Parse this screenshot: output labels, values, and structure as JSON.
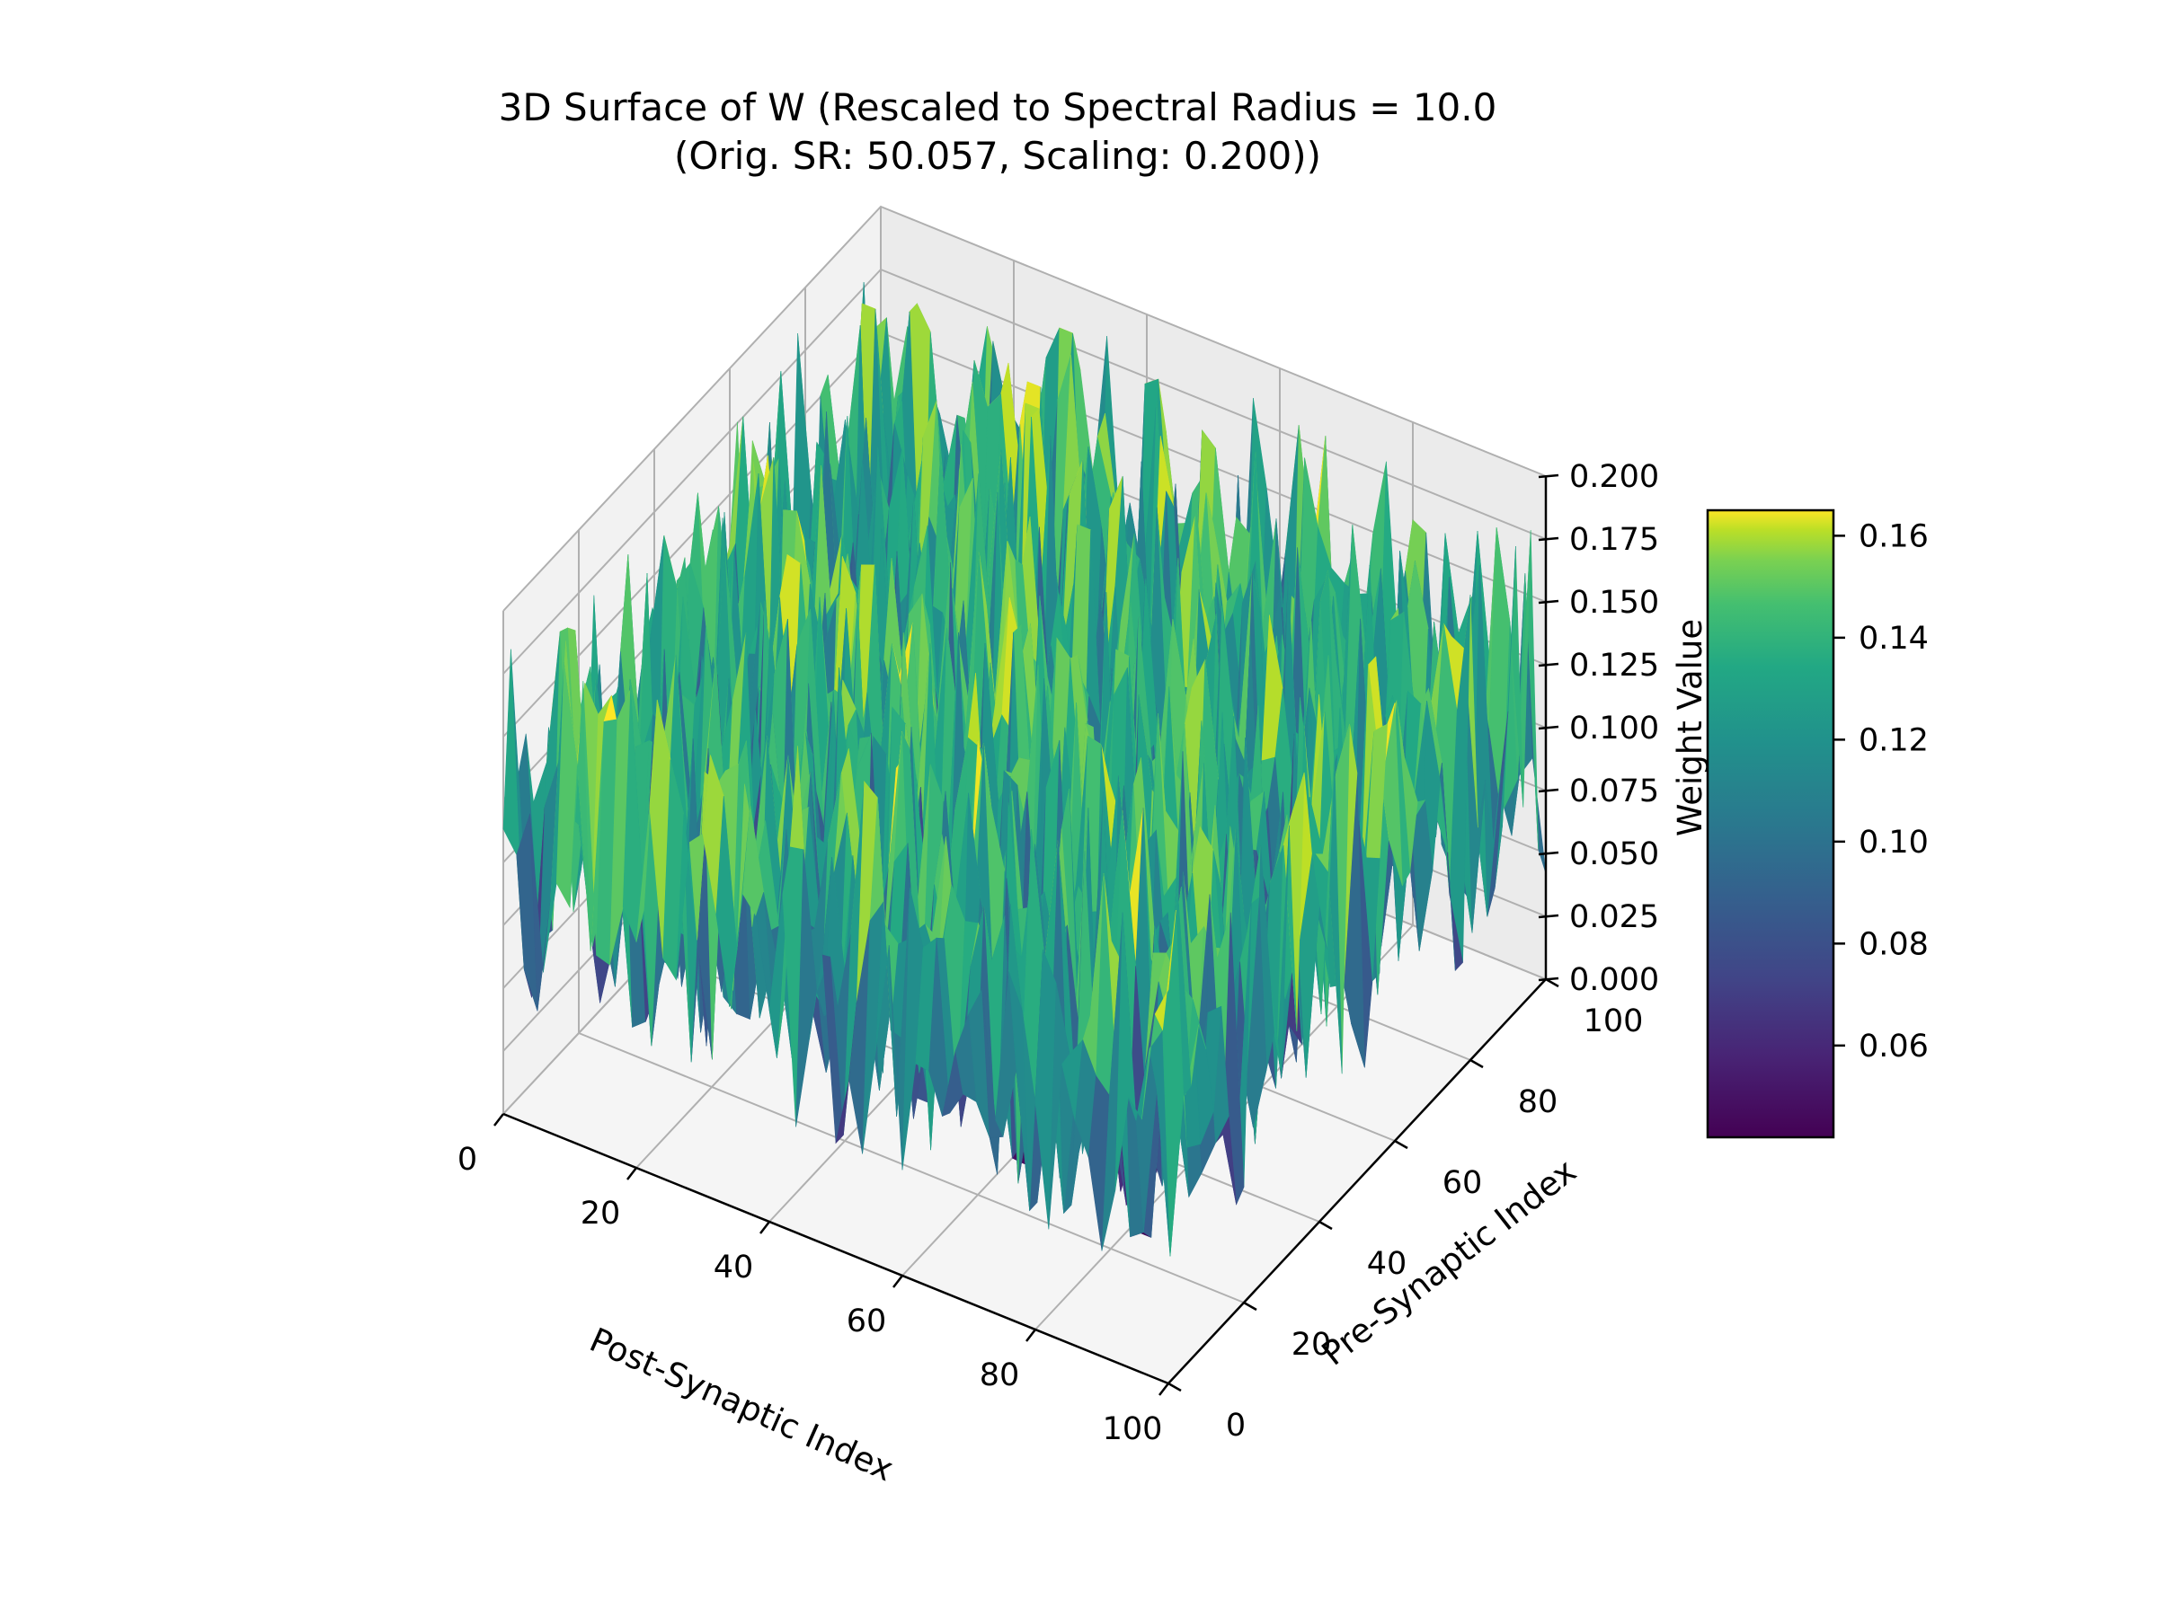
{
  "chart_data": {
    "type": "surface3d",
    "title": "3D Surface of W (Rescaled to Spectral Radius = 10.0\n(Orig. SR: 50.057, Scaling: 0.200))",
    "title_lines": [
      "3D Surface of W (Rescaled to Spectral Radius = 10.0",
      "(Orig. SR: 50.057, Scaling: 0.200))"
    ],
    "xlabel": "Post-Synaptic Index",
    "ylabel": "Pre-Synaptic Index",
    "zlabel": "Weight Value",
    "x_range": [
      0,
      100
    ],
    "y_range": [
      0,
      100
    ],
    "z_range": [
      0,
      0.2
    ],
    "x_ticks": [
      "0",
      "20",
      "40",
      "60",
      "80",
      "100"
    ],
    "y_ticks": [
      "0",
      "20",
      "40",
      "60",
      "80",
      "100"
    ],
    "z_ticks": [
      "0.000",
      "0.025",
      "0.050",
      "0.075",
      "0.100",
      "0.125",
      "0.150",
      "0.175",
      "0.200"
    ],
    "colormap": "viridis",
    "colorbar": {
      "range": [
        0.042,
        0.165
      ],
      "ticks": [
        "0.06",
        "0.08",
        "0.10",
        "0.12",
        "0.14",
        "0.16"
      ]
    },
    "surface_summary": {
      "value_min": 0.042,
      "value_max": 0.165,
      "value_mean": 0.105
    },
    "grid": true
  }
}
